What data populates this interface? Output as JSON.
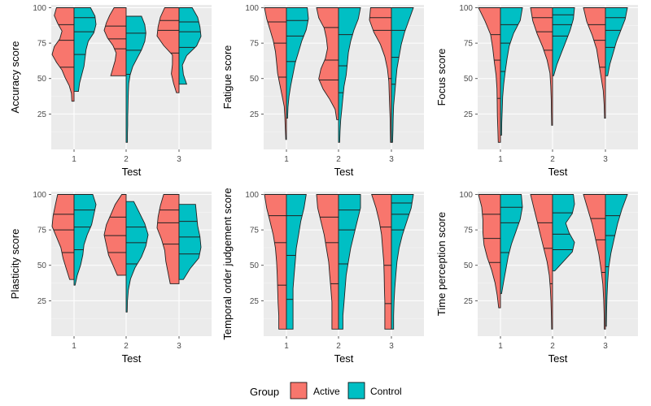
{
  "chart_data": {
    "type": "split-violin",
    "xlabel": "Test",
    "categories": [
      "1",
      "2",
      "3"
    ],
    "yticks": [
      25,
      50,
      75,
      100
    ],
    "ylim": [
      0,
      102
    ],
    "legend": {
      "title": "Group",
      "position": "bottom",
      "entries": [
        {
          "name": "Active",
          "color": "#F8766D"
        },
        {
          "name": "Control",
          "color": "#00BFC4"
        }
      ]
    },
    "panels": [
      {
        "ylabel": "Accuracy score",
        "groups": [
          {
            "test": "1",
            "active": {
              "min": 34,
              "max": 100,
              "quartiles": [
                58,
                77,
                88
              ],
              "profile": [
                0.1,
                0.12,
                0.22,
                0.4,
                0.55,
                0.8,
                1.0,
                0.9,
                0.65,
                0.55,
                0.75,
                0.9,
                0.8
              ]
            },
            "control": {
              "min": 41,
              "max": 100,
              "quartiles": [
                67,
                83,
                93
              ],
              "profile": [
                0.2,
                0.25,
                0.35,
                0.45,
                0.5,
                0.55,
                0.65,
                0.9,
                1.0,
                0.95,
                0.75
              ]
            }
          },
          {
            "test": "2",
            "active": {
              "min": 52,
              "max": 100,
              "quartiles": [
                71,
                78,
                87
              ],
              "profile": [
                0.7,
                0.6,
                0.5,
                0.45,
                0.6,
                0.85,
                1.0,
                0.9,
                0.75,
                0.55
              ]
            },
            "control": {
              "min": 5,
              "max": 94,
              "quartiles": [
                53,
                70,
                82
              ],
              "profile": [
                0.06,
                0.06,
                0.07,
                0.07,
                0.08,
                0.09,
                0.1,
                0.12,
                0.18,
                0.3,
                0.5,
                0.7,
                0.85,
                0.9,
                0.85,
                0.7
              ]
            }
          },
          {
            "test": "3",
            "active": {
              "min": 40,
              "max": 100,
              "quartiles": [
                68,
                84,
                91
              ],
              "profile": [
                0.12,
                0.25,
                0.35,
                0.3,
                0.3,
                0.7,
                1.0,
                0.95,
                0.85,
                0.65
              ]
            },
            "control": {
              "min": 46,
              "max": 100,
              "quartiles": [
                72,
                83,
                90
              ],
              "profile": [
                0.35,
                0.2,
                0.15,
                0.35,
                0.8,
                1.0,
                0.95,
                0.85,
                0.6
              ]
            }
          }
        ]
      },
      {
        "ylabel": "Fatigue score",
        "groups": [
          {
            "test": "1",
            "active": {
              "min": 7,
              "max": 100,
              "quartiles": [
                51,
                75,
                90
              ],
              "profile": [
                0.03,
                0.05,
                0.07,
                0.1,
                0.2,
                0.3,
                0.4,
                0.45,
                0.5,
                0.6,
                0.75,
                0.9,
                1.0
              ]
            },
            "control": {
              "min": 22,
              "max": 100,
              "quartiles": [
                62,
                80,
                91
              ],
              "profile": [
                0.05,
                0.07,
                0.12,
                0.2,
                0.3,
                0.4,
                0.55,
                0.7,
                0.9,
                1.0,
                0.95
              ]
            }
          },
          {
            "test": "2",
            "active": {
              "min": 21,
              "max": 100,
              "quartiles": [
                49,
                63,
                86
              ],
              "profile": [
                0.08,
                0.15,
                0.4,
                0.7,
                0.9,
                0.8,
                0.6,
                0.5,
                0.55,
                0.65,
                0.9,
                1.0
              ]
            },
            "control": {
              "min": 5,
              "max": 100,
              "quartiles": [
                40,
                59,
                81
              ],
              "profile": [
                0.05,
                0.07,
                0.1,
                0.15,
                0.2,
                0.25,
                0.35,
                0.4,
                0.45,
                0.55,
                0.7,
                0.9,
                1.0
              ]
            }
          },
          {
            "test": "3",
            "active": {
              "min": 5,
              "max": 100,
              "quartiles": [
                50,
                84,
                93
              ],
              "profile": [
                0.04,
                0.05,
                0.06,
                0.08,
                0.1,
                0.12,
                0.18,
                0.3,
                0.5,
                0.8,
                1.0,
                0.95
              ]
            },
            "control": {
              "min": 5,
              "max": 100,
              "quartiles": [
                46,
                65,
                84
              ],
              "profile": [
                0.05,
                0.07,
                0.08,
                0.1,
                0.15,
                0.2,
                0.25,
                0.35,
                0.45,
                0.6,
                0.8,
                1.0
              ]
            }
          }
        ]
      },
      {
        "ylabel": "Focus score",
        "groups": [
          {
            "test": "1",
            "active": {
              "min": 5,
              "max": 100,
              "quartiles": [
                36,
                63,
                81
              ],
              "profile": [
                0.1,
                0.12,
                0.14,
                0.15,
                0.16,
                0.2,
                0.28,
                0.35,
                0.45,
                0.7,
                1.0
              ]
            },
            "control": {
              "min": 10,
              "max": 100,
              "quartiles": [
                55,
                75,
                88
              ],
              "profile": [
                0.05,
                0.06,
                0.08,
                0.1,
                0.15,
                0.22,
                0.3,
                0.4,
                0.6,
                0.9,
                1.0
              ]
            }
          },
          {
            "test": "2",
            "active": {
              "min": 17,
              "max": 100,
              "quartiles": [
                70,
                83,
                93
              ],
              "profile": [
                0.04,
                0.05,
                0.06,
                0.08,
                0.12,
                0.25,
                0.45,
                0.7,
                0.9,
                1.0
              ]
            },
            "control": {
              "min": 52,
              "max": 100,
              "quartiles": [
                80,
                88,
                95
              ],
              "profile": [
                0.05,
                0.2,
                0.4,
                0.6,
                0.8,
                0.95,
                1.0
              ]
            }
          },
          {
            "test": "3",
            "active": {
              "min": 22,
              "max": 100,
              "quartiles": [
                58,
                77,
                88
              ],
              "profile": [
                0.04,
                0.06,
                0.1,
                0.2,
                0.3,
                0.4,
                0.6,
                0.85,
                1.0
              ]
            },
            "control": {
              "min": 52,
              "max": 100,
              "quartiles": [
                72,
                84,
                93
              ],
              "profile": [
                0.1,
                0.2,
                0.35,
                0.5,
                0.7,
                0.9,
                1.0
              ]
            }
          }
        ]
      },
      {
        "ylabel": "Plasticity score",
        "groups": [
          {
            "test": "1",
            "active": {
              "min": 40,
              "max": 100,
              "quartiles": [
                59,
                75,
                86
              ],
              "profile": [
                0.2,
                0.35,
                0.5,
                0.6,
                0.8,
                1.0,
                0.95,
                0.85,
                0.75
              ]
            },
            "control": {
              "min": 36,
              "max": 100,
              "quartiles": [
                61,
                77,
                89
              ],
              "profile": [
                0.05,
                0.15,
                0.3,
                0.4,
                0.45,
                0.6,
                0.8,
                0.9,
                1.0,
                0.85
              ]
            }
          },
          {
            "test": "2",
            "active": {
              "min": 43,
              "max": 100,
              "quartiles": [
                59,
                71,
                84
              ],
              "profile": [
                0.4,
                0.6,
                0.8,
                0.9,
                1.0,
                0.9,
                0.7,
                0.5,
                0.2
              ]
            },
            "control": {
              "min": 17,
              "max": 95,
              "quartiles": [
                51,
                66,
                77
              ],
              "profile": [
                0.05,
                0.06,
                0.1,
                0.2,
                0.4,
                0.7,
                0.9,
                1.0,
                0.85,
                0.6,
                0.35
              ]
            }
          },
          {
            "test": "3",
            "active": {
              "min": 37,
              "max": 100,
              "quartiles": [
                65,
                80,
                89
              ],
              "profile": [
                0.4,
                0.5,
                0.6,
                0.65,
                0.8,
                1.0,
                0.95,
                0.85,
                0.7
              ]
            },
            "control": {
              "min": 40,
              "max": 93,
              "quartiles": [
                58,
                70,
                81
              ],
              "profile": [
                0.2,
                0.5,
                0.9,
                1.0,
                0.95,
                0.85,
                0.8,
                0.75
              ]
            }
          }
        ]
      },
      {
        "ylabel": "Temporal order judgement score",
        "groups": [
          {
            "test": "1",
            "active": {
              "min": 5,
              "max": 100,
              "quartiles": [
                36,
                66,
                85
              ],
              "profile": [
                0.35,
                0.35,
                0.38,
                0.4,
                0.42,
                0.45,
                0.5,
                0.6,
                0.75,
                0.9,
                1.0
              ]
            },
            "control": {
              "min": 5,
              "max": 100,
              "quartiles": [
                26,
                57,
                85
              ],
              "profile": [
                0.3,
                0.3,
                0.3,
                0.3,
                0.35,
                0.4,
                0.45,
                0.55,
                0.65,
                0.8,
                0.9
              ]
            }
          },
          {
            "test": "2",
            "active": {
              "min": 5,
              "max": 100,
              "quartiles": [
                37,
                66,
                84
              ],
              "profile": [
                0.3,
                0.3,
                0.3,
                0.35,
                0.4,
                0.45,
                0.55,
                0.65,
                0.8,
                0.95,
                1.0
              ]
            },
            "control": {
              "min": 5,
              "max": 100,
              "quartiles": [
                51,
                75,
                89
              ],
              "profile": [
                0.2,
                0.2,
                0.25,
                0.3,
                0.35,
                0.45,
                0.55,
                0.7,
                0.85,
                1.0,
                1.0
              ]
            }
          },
          {
            "test": "3",
            "active": {
              "min": 5,
              "max": 100,
              "quartiles": [
                23,
                50,
                77
              ],
              "profile": [
                0.3,
                0.3,
                0.3,
                0.32,
                0.33,
                0.35,
                0.4,
                0.45,
                0.55,
                0.7,
                0.9
              ]
            },
            "control": {
              "min": 5,
              "max": 100,
              "quartiles": [
                75,
                86,
                94
              ],
              "profile": [
                0.1,
                0.1,
                0.12,
                0.15,
                0.2,
                0.25,
                0.35,
                0.5,
                0.7,
                0.9,
                1.0
              ]
            }
          }
        ]
      },
      {
        "ylabel": "Time perception score",
        "groups": [
          {
            "test": "1",
            "active": {
              "min": 20,
              "max": 100,
              "quartiles": [
                52,
                69,
                86
              ],
              "profile": [
                0.08,
                0.15,
                0.25,
                0.4,
                0.6,
                0.75,
                0.8,
                0.8,
                0.85,
                1.0
              ]
            },
            "control": {
              "min": 30,
              "max": 100,
              "quartiles": [
                59,
                80,
                91
              ],
              "profile": [
                0.05,
                0.15,
                0.25,
                0.35,
                0.5,
                0.7,
                0.9,
                1.0,
                0.95
              ]
            }
          },
          {
            "test": "2",
            "active": {
              "min": 5,
              "max": 100,
              "quartiles": [
                37,
                62,
                80
              ],
              "profile": [
                0.04,
                0.05,
                0.07,
                0.1,
                0.15,
                0.25,
                0.4,
                0.55,
                0.7,
                0.85,
                1.0
              ]
            },
            "control": {
              "min": 46,
              "max": 100,
              "quartiles": [
                61,
                72,
                87
              ],
              "profile": [
                0.1,
                0.5,
                0.9,
                1.0,
                0.75,
                0.6,
                0.9,
                1.0,
                0.95
              ]
            }
          },
          {
            "test": "3",
            "active": {
              "min": 5,
              "max": 100,
              "quartiles": [
                45,
                68,
                83
              ],
              "profile": [
                0.05,
                0.06,
                0.08,
                0.12,
                0.2,
                0.3,
                0.45,
                0.6,
                0.8,
                1.0
              ]
            },
            "control": {
              "min": 7,
              "max": 100,
              "quartiles": [
                49,
                71,
                85
              ],
              "profile": [
                0.04,
                0.05,
                0.07,
                0.1,
                0.15,
                0.25,
                0.4,
                0.55,
                0.75,
                1.0
              ]
            }
          }
        ]
      }
    ]
  }
}
